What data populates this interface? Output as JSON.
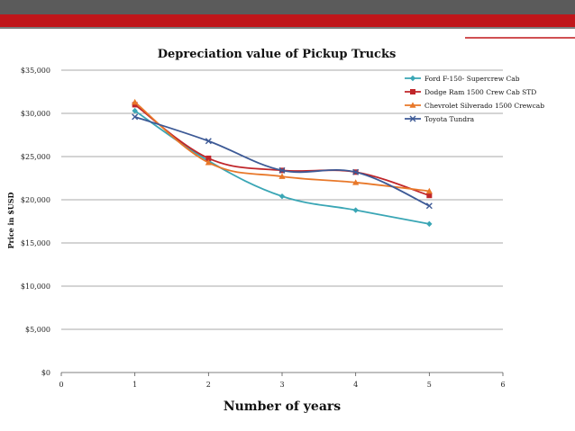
{
  "colors": {
    "topbar": "#5b5b5b",
    "accent": "#c0161a",
    "grid": "#8c8c8c"
  },
  "chart_data": {
    "type": "line",
    "title": "Depreciation value of Pickup Trucks",
    "xlabel": "Number of years",
    "ylabel": "Price in $USD",
    "xlim": [
      0,
      6
    ],
    "ylim": [
      0,
      35000
    ],
    "x_ticks": [
      "0",
      "1",
      "2",
      "3",
      "4",
      "5",
      "6"
    ],
    "y_ticks": [
      "$0",
      "$5,000",
      "$10,000",
      "$15,000",
      "$20,000",
      "$25,000",
      "$30,000",
      "$35,000"
    ],
    "grid": true,
    "legend_position": "top-right",
    "x": [
      1,
      2,
      3,
      4,
      5
    ],
    "series": [
      {
        "name": "Ford F-150- Supercrew Cab",
        "color": "#3aa6b5",
        "marker": "diamond",
        "values": [
          30300,
          24500,
          20400,
          18800,
          17200
        ]
      },
      {
        "name": "Dodge Ram 1500 Crew Cab STD",
        "color": "#c0262a",
        "marker": "square",
        "values": [
          31000,
          24800,
          23400,
          23200,
          20500
        ]
      },
      {
        "name": "Chevrolet Silverado 1500 Crewcab",
        "color": "#e8782a",
        "marker": "triangle",
        "values": [
          31300,
          24300,
          22700,
          22000,
          21000
        ]
      },
      {
        "name": "Toyota Tundra",
        "color": "#3d5a96",
        "marker": "x",
        "values": [
          29600,
          26800,
          23400,
          23200,
          19300
        ]
      }
    ]
  }
}
